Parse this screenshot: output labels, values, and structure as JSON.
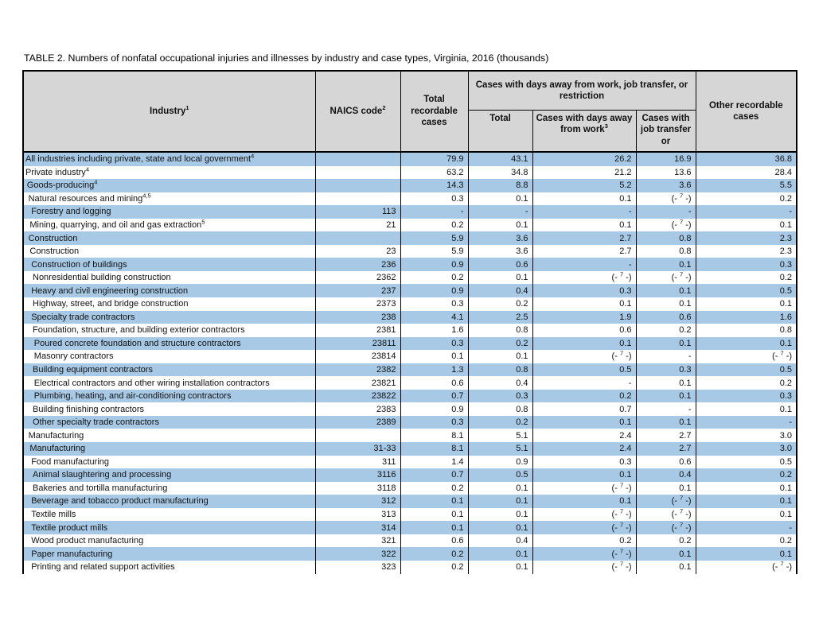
{
  "page": {
    "title": "TABLE 2. Numbers of nonfatal occupational injuries and illnesses by industry and case types, Virginia, 2016 (thousands)"
  },
  "colors": {
    "row_alt": "#a7c9e5",
    "header_bg": "#d6d6d6",
    "border_color": "#000000",
    "text_color": "#111111"
  },
  "table": {
    "headers": {
      "industry": {
        "label": "Industry",
        "sup": "1"
      },
      "naics": {
        "label": "NAICS code",
        "sup": "2"
      },
      "total_recordable": "Total recordable cases",
      "dart_group": "Cases with days away from work, job transfer, or restriction",
      "dart_total": "Total",
      "days_away": {
        "label": "Cases with days away from work",
        "sup": "3"
      },
      "job_transfer": "Cases with job transfer or",
      "other": "Other recordable cases"
    },
    "suppressed_marker": {
      "open": "(-",
      "sup": "7",
      "close": "-)"
    },
    "rows": [
      {
        "industry": "All industries including private, state and local government",
        "sup": "4",
        "indent": 0,
        "naics": "",
        "values": [
          "79.9",
          "43.1",
          "26.2",
          "16.9",
          "36.8"
        ]
      },
      {
        "industry": "Private industry",
        "sup": "4",
        "indent": 0,
        "naics": "",
        "values": [
          "63.2",
          "34.8",
          "21.2",
          "13.6",
          "28.4"
        ]
      },
      {
        "industry": "Goods-producing",
        "sup": "4",
        "indent": 1,
        "naics": "",
        "values": [
          "14.3",
          "8.8",
          "5.2",
          "3.6",
          "5.5"
        ]
      },
      {
        "industry": "Natural resources and mining",
        "sup": "4,5",
        "indent": 2,
        "naics": "",
        "values": [
          "0.3",
          "0.1",
          "0.1",
          "(-7-)",
          "0.2"
        ]
      },
      {
        "industry": "Forestry and logging",
        "sup": "",
        "indent": 4,
        "naics": "113",
        "values": [
          "-",
          "-",
          "-",
          "-",
          "-"
        ]
      },
      {
        "industry": "Mining, quarrying, and oil and gas extraction",
        "sup": "5",
        "indent": 3,
        "naics": "21",
        "values": [
          "0.2",
          "0.1",
          "0.1",
          "(-7-)",
          "0.1"
        ]
      },
      {
        "industry": "Construction",
        "sup": "",
        "indent": 2,
        "naics": "",
        "values": [
          "5.9",
          "3.6",
          "2.7",
          "0.8",
          "2.3"
        ]
      },
      {
        "industry": "Construction",
        "sup": "",
        "indent": 3,
        "naics": "23",
        "values": [
          "5.9",
          "3.6",
          "2.7",
          "0.8",
          "2.3"
        ]
      },
      {
        "industry": "Construction of buildings",
        "sup": "",
        "indent": 4,
        "naics": "236",
        "values": [
          "0.9",
          "0.6",
          "-",
          "0.1",
          "0.3"
        ]
      },
      {
        "industry": "Nonresidential building construction",
        "sup": "",
        "indent": 5,
        "naics": "2362",
        "values": [
          "0.2",
          "0.1",
          "(-7-)",
          "(-7-)",
          "0.2"
        ]
      },
      {
        "industry": "Heavy and civil engineering construction",
        "sup": "",
        "indent": 4,
        "naics": "237",
        "values": [
          "0.9",
          "0.4",
          "0.3",
          "0.1",
          "0.5"
        ]
      },
      {
        "industry": "Highway, street, and bridge construction",
        "sup": "",
        "indent": 5,
        "naics": "2373",
        "values": [
          "0.3",
          "0.2",
          "0.1",
          "0.1",
          "0.1"
        ]
      },
      {
        "industry": "Specialty trade contractors",
        "sup": "",
        "indent": 4,
        "naics": "238",
        "values": [
          "4.1",
          "2.5",
          "1.9",
          "0.6",
          "1.6"
        ]
      },
      {
        "industry": "Foundation, structure, and building exterior contractors",
        "sup": "",
        "indent": 5,
        "naics": "2381",
        "values": [
          "1.6",
          "0.8",
          "0.6",
          "0.2",
          "0.8"
        ]
      },
      {
        "industry": "Poured concrete foundation and structure contractors",
        "sup": "",
        "indent": 6,
        "naics": "23811",
        "values": [
          "0.3",
          "0.2",
          "0.1",
          "0.1",
          "0.1"
        ]
      },
      {
        "industry": "Masonry contractors",
        "sup": "",
        "indent": 6,
        "naics": "23814",
        "values": [
          "0.1",
          "0.1",
          "(-7-)",
          "-",
          "(-7-)"
        ]
      },
      {
        "industry": "Building equipment contractors",
        "sup": "",
        "indent": 5,
        "naics": "2382",
        "values": [
          "1.3",
          "0.8",
          "0.5",
          "0.3",
          "0.5"
        ]
      },
      {
        "industry": "Electrical contractors and other wiring installation contractors",
        "sup": "",
        "indent": 6,
        "naics": "23821",
        "values": [
          "0.6",
          "0.4",
          "-",
          "0.1",
          "0.2"
        ]
      },
      {
        "industry": "Plumbing, heating, and air-conditioning contractors",
        "sup": "",
        "indent": 6,
        "naics": "23822",
        "values": [
          "0.7",
          "0.3",
          "0.2",
          "0.1",
          "0.3"
        ]
      },
      {
        "industry": "Building finishing contractors",
        "sup": "",
        "indent": 5,
        "naics": "2383",
        "values": [
          "0.9",
          "0.8",
          "0.7",
          "-",
          "0.1"
        ]
      },
      {
        "industry": "Other specialty trade contractors",
        "sup": "",
        "indent": 5,
        "naics": "2389",
        "values": [
          "0.3",
          "0.2",
          "0.1",
          "0.1",
          "-"
        ]
      },
      {
        "industry": "Manufacturing",
        "sup": "",
        "indent": 2,
        "naics": "",
        "values": [
          "8.1",
          "5.1",
          "2.4",
          "2.7",
          "3.0"
        ]
      },
      {
        "industry": "Manufacturing",
        "sup": "",
        "indent": 3,
        "naics": "31-33",
        "values": [
          "8.1",
          "5.1",
          "2.4",
          "2.7",
          "3.0"
        ]
      },
      {
        "industry": "Food manufacturing",
        "sup": "",
        "indent": 4,
        "naics": "311",
        "values": [
          "1.4",
          "0.9",
          "0.3",
          "0.6",
          "0.5"
        ]
      },
      {
        "industry": "Animal slaughtering and processing",
        "sup": "",
        "indent": 5,
        "naics": "3116",
        "values": [
          "0.7",
          "0.5",
          "0.1",
          "0.4",
          "0.2"
        ]
      },
      {
        "industry": "Bakeries and tortilla manufacturing",
        "sup": "",
        "indent": 5,
        "naics": "3118",
        "values": [
          "0.2",
          "0.1",
          "(-7-)",
          "0.1",
          "0.1"
        ]
      },
      {
        "industry": "Beverage and tobacco product manufacturing",
        "sup": "",
        "indent": 4,
        "naics": "312",
        "values": [
          "0.1",
          "0.1",
          "0.1",
          "(-7-)",
          "0.1"
        ]
      },
      {
        "industry": "Textile mills",
        "sup": "",
        "indent": 4,
        "naics": "313",
        "values": [
          "0.1",
          "0.1",
          "(-7-)",
          "(-7-)",
          "0.1"
        ]
      },
      {
        "industry": "Textile product mills",
        "sup": "",
        "indent": 4,
        "naics": "314",
        "values": [
          "0.1",
          "0.1",
          "(-7-)",
          "(-7-)",
          "-"
        ]
      },
      {
        "industry": "Wood product manufacturing",
        "sup": "",
        "indent": 4,
        "naics": "321",
        "values": [
          "0.6",
          "0.4",
          "0.2",
          "0.2",
          "0.2"
        ]
      },
      {
        "industry": "Paper manufacturing",
        "sup": "",
        "indent": 4,
        "naics": "322",
        "values": [
          "0.2",
          "0.1",
          "(-7-)",
          "0.1",
          "0.1"
        ]
      },
      {
        "industry": "Printing and related support activities",
        "sup": "",
        "indent": 4,
        "naics": "323",
        "values": [
          "0.2",
          "0.1",
          "(-7-)",
          "0.1",
          "(-7-)"
        ]
      }
    ]
  }
}
